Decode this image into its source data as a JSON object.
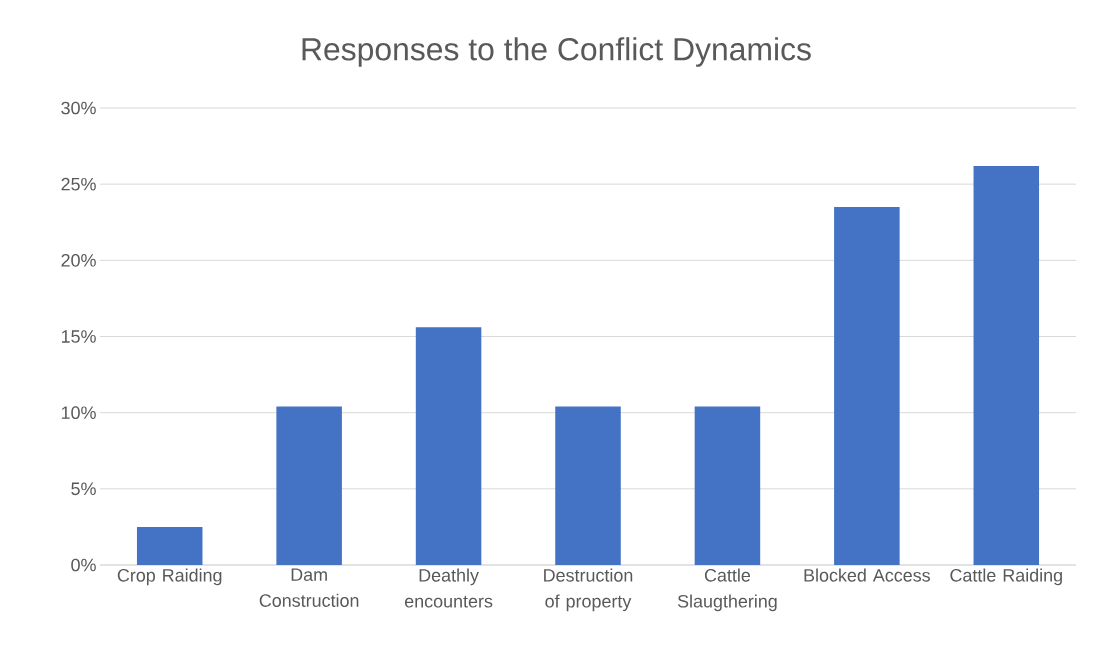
{
  "chart_data": {
    "type": "bar",
    "title": "Responses to the Conflict Dynamics",
    "categories": [
      "Crop Raiding",
      "Dam Construction",
      "Deathly encounters",
      "Destruction of property",
      "Cattle Slaugthering",
      "Blocked Access",
      "Cattle Raiding"
    ],
    "values": [
      2.5,
      10.4,
      15.6,
      10.4,
      10.4,
      23.5,
      26.2
    ],
    "color": "#4472c4",
    "ylim": [
      0,
      30
    ],
    "yticks": [
      {
        "value": 0,
        "label": "0%"
      },
      {
        "value": 5,
        "label": "5%"
      },
      {
        "value": 10,
        "label": "10%"
      },
      {
        "value": 15,
        "label": "15%"
      },
      {
        "value": 20,
        "label": "20%"
      },
      {
        "value": 25,
        "label": "25%"
      },
      {
        "value": 30,
        "label": "30%"
      }
    ],
    "grid": "y"
  }
}
